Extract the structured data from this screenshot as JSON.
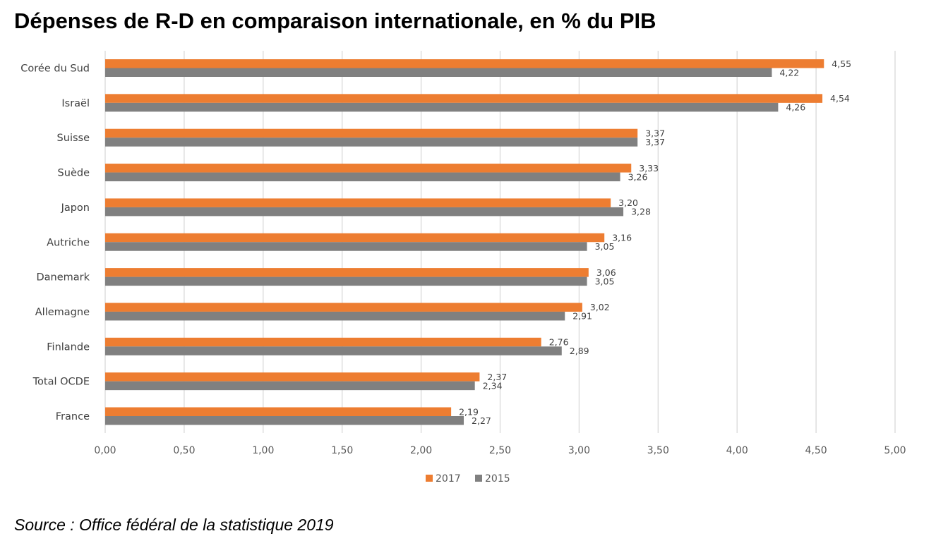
{
  "title": "Dépenses de R-D en comparaison internationale, en % du PIB",
  "source": "Source : Office fédéral de la statistique 2019",
  "chart_data": {
    "type": "bar",
    "orientation": "horizontal",
    "categories": [
      "Corée du Sud",
      "Israël",
      "Suisse",
      "Suède",
      "Japon",
      "Autriche",
      "Danemark",
      "Allemagne",
      "Finlande",
      "Total OCDE",
      "France"
    ],
    "series": [
      {
        "name": "2017",
        "color": "#ED7D31",
        "values": [
          4.55,
          4.54,
          3.37,
          3.33,
          3.2,
          3.16,
          3.06,
          3.02,
          2.76,
          2.37,
          2.19
        ],
        "labels": [
          "4,55",
          "4,54",
          "3,37",
          "3,33",
          "3,20",
          "3,16",
          "3,06",
          "3,02",
          "2,76",
          "2,37",
          "2,19"
        ]
      },
      {
        "name": "2015",
        "color": "#808080",
        "values": [
          4.22,
          4.26,
          3.37,
          3.26,
          3.28,
          3.05,
          3.05,
          2.91,
          2.89,
          2.34,
          2.27
        ],
        "labels": [
          "4,22",
          "4,26",
          "3,37",
          "3,26",
          "3,28",
          "3,05",
          "3,05",
          "2,91",
          "2,89",
          "2,34",
          "2,27"
        ]
      }
    ],
    "xlim": [
      0,
      5
    ],
    "x_ticks": [
      "0,00",
      "0,50",
      "1,00",
      "1,50",
      "2,00",
      "2,50",
      "3,00",
      "3,50",
      "4,00",
      "4,50",
      "5,00"
    ],
    "grid": true,
    "legend_position": "bottom",
    "xlabel": "",
    "ylabel": ""
  }
}
